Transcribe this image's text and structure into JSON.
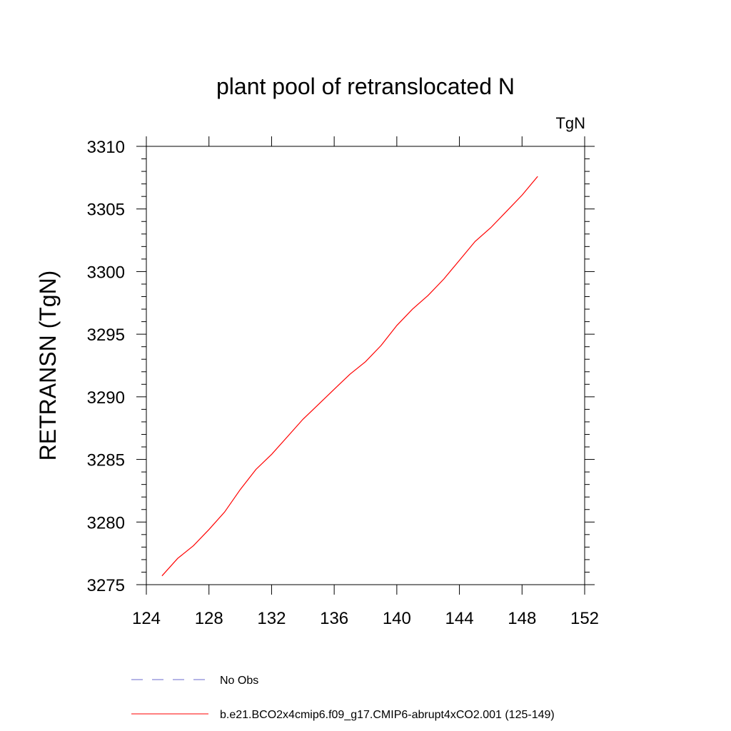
{
  "chart_data": {
    "type": "line",
    "title": "plant pool of retranslocated N",
    "units_label": "TgN",
    "ylabel": "RETRANSN  (TgN)",
    "xlabel": "",
    "xlim": [
      124,
      152
    ],
    "ylim": [
      3275,
      3310
    ],
    "x_ticks": [
      124,
      128,
      132,
      136,
      140,
      144,
      148,
      152
    ],
    "y_ticks": [
      3275,
      3280,
      3285,
      3290,
      3295,
      3300,
      3305,
      3310
    ],
    "x_tick_labels": [
      "124",
      "128",
      "132",
      "136",
      "140",
      "144",
      "148",
      "152"
    ],
    "y_tick_labels": [
      "3275",
      "3280",
      "3285",
      "3290",
      "3295",
      "3300",
      "3305",
      "3310"
    ],
    "grid": false,
    "legend_position": "bottom",
    "series": [
      {
        "name": "b.e21.BCO2x4cmip6.f09_g17.CMIP6-abrupt4xCO2.001 (125-149)",
        "color": "#ff0000",
        "style": "solid",
        "x": [
          125,
          126,
          127,
          128,
          129,
          130,
          131,
          132,
          133,
          134,
          135,
          136,
          137,
          138,
          139,
          140,
          141,
          142,
          143,
          144,
          145,
          146,
          147,
          148,
          149
        ],
        "values": [
          3275.7,
          3277.1,
          3278.1,
          3279.4,
          3280.8,
          3282.6,
          3284.2,
          3285.4,
          3286.8,
          3288.2,
          3289.4,
          3290.6,
          3291.8,
          3292.8,
          3294.1,
          3295.7,
          3297.0,
          3298.1,
          3299.4,
          3300.9,
          3302.4,
          3303.5,
          3304.8,
          3306.1,
          3307.6
        ]
      }
    ],
    "legend": [
      {
        "label": "No Obs",
        "color": "#6a6acd",
        "style": "dashed"
      },
      {
        "label": "b.e21.BCO2x4cmip6.f09_g17.CMIP6-abrupt4xCO2.001 (125-149)",
        "color": "#ff0000",
        "style": "solid"
      }
    ]
  }
}
